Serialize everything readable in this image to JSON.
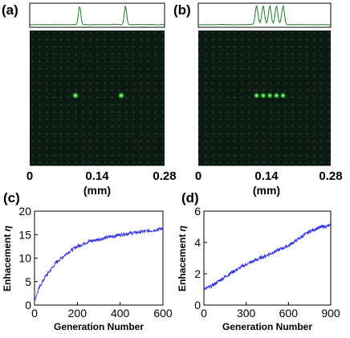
{
  "panels": {
    "a": {
      "label": "(a)",
      "x_ticks": [
        "0",
        "0.14",
        "0.28"
      ],
      "x_unit": "(mm)",
      "profile_peaks": [
        0.37,
        0.71
      ]
    },
    "b": {
      "label": "(b)",
      "x_ticks": [
        "0",
        "0.14",
        "0.28"
      ],
      "x_unit": "(mm)",
      "profile_peaks": [
        0.44,
        0.49,
        0.54,
        0.59,
        0.64
      ]
    }
  },
  "chart_data": [
    {
      "panel": "c",
      "type": "line",
      "label": "(c)",
      "xlabel": "Generation Number",
      "ylabel": "Enhacement",
      "ylabel_symbol": "η",
      "xlim": [
        0,
        600
      ],
      "ylim": [
        0,
        20
      ],
      "x_ticks": [
        "0",
        "200",
        "400",
        "600"
      ],
      "y_ticks": [
        "0",
        "5",
        "10",
        "15",
        "20"
      ],
      "color": "#2d2df0",
      "points": [
        [
          0,
          1
        ],
        [
          25,
          4
        ],
        [
          50,
          6
        ],
        [
          75,
          7.5
        ],
        [
          100,
          9
        ],
        [
          150,
          11
        ],
        [
          200,
          12.5
        ],
        [
          250,
          13.5
        ],
        [
          300,
          14
        ],
        [
          350,
          14.5
        ],
        [
          400,
          15
        ],
        [
          450,
          15.3
        ],
        [
          500,
          15.6
        ],
        [
          550,
          15.9
        ],
        [
          600,
          16.3
        ]
      ]
    },
    {
      "panel": "d",
      "type": "line",
      "label": "(d)",
      "xlabel": "Generation Number",
      "ylabel": "Enhacement",
      "ylabel_symbol": "η",
      "xlim": [
        0,
        900
      ],
      "ylim": [
        0,
        6
      ],
      "x_ticks": [
        "0",
        "300",
        "600",
        "900"
      ],
      "y_ticks": [
        "0",
        "2",
        "4",
        "6"
      ],
      "color": "#2d2df0",
      "points": [
        [
          0,
          1
        ],
        [
          50,
          1.2
        ],
        [
          100,
          1.5
        ],
        [
          150,
          1.8
        ],
        [
          200,
          2.1
        ],
        [
          300,
          2.6
        ],
        [
          400,
          3.0
        ],
        [
          500,
          3.4
        ],
        [
          600,
          3.8
        ],
        [
          700,
          4.4
        ],
        [
          750,
          4.7
        ],
        [
          800,
          4.9
        ],
        [
          850,
          5.0
        ],
        [
          900,
          5.1
        ]
      ]
    }
  ]
}
